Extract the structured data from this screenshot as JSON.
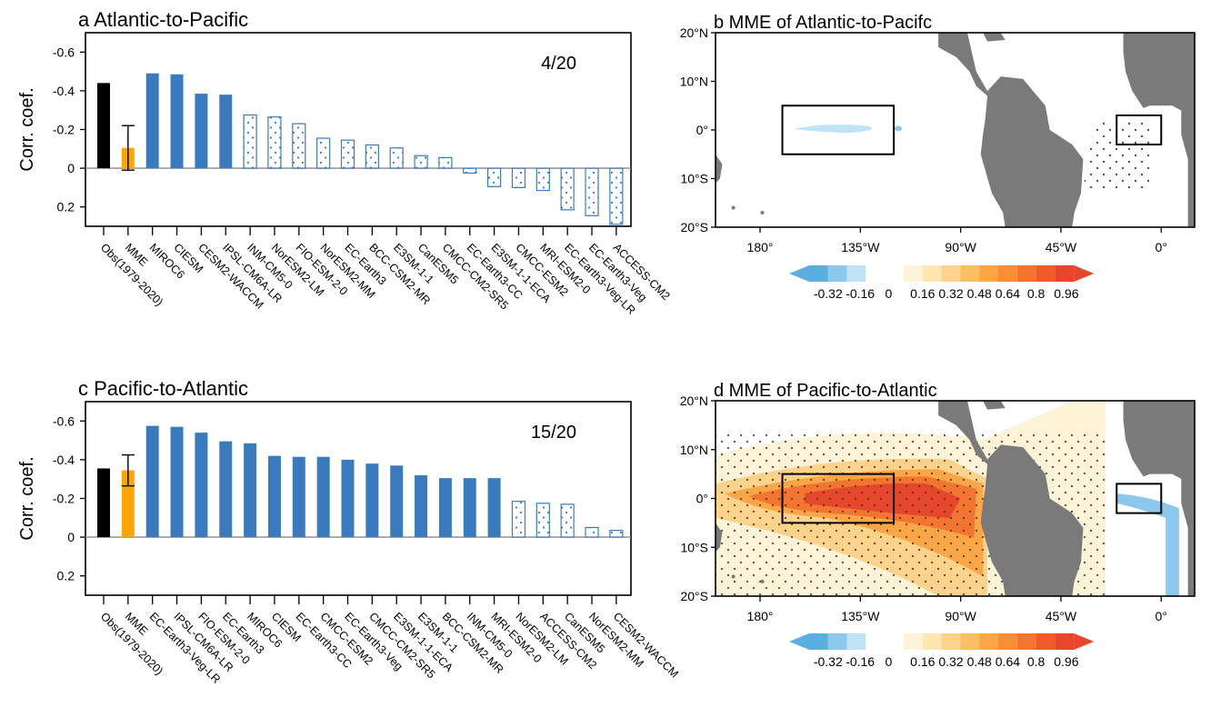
{
  "chart_data": [
    {
      "type": "bar",
      "title": "a Atlantic-to-Pacific",
      "ylabel": "Corr. coef.",
      "y_inverted": true,
      "ylim": [
        -0.7,
        0.3
      ],
      "yticks": [
        -0.6,
        -0.4,
        -0.2,
        0,
        0.2
      ],
      "ytick_labels": [
        "-0.6",
        "-0.4",
        "-0.2",
        "0",
        "0.2"
      ],
      "annotation": "4/20",
      "categories": [
        "Obs(1979-2020)",
        "MME",
        "MIROC6",
        "CIESM",
        "CESM2-WACCM",
        "IPSL-CM6A-LR",
        "INM-CM5-0",
        "NorESM2-LM",
        "FIO-ESM-2-0",
        "NorESM2-MM",
        "EC-Earth3",
        "BCC-CSM2-MR",
        "E3SM-1-1",
        "CanESM5",
        "CMCC-CM2-SR5",
        "EC-Earth3-CC",
        "E3SM-1-1-ECA",
        "CMCC-ESM2",
        "MRI-ESM2-0",
        "EC-Earth3-Veg-LR",
        "EC-Earth3-Veg",
        "ACCESS-CM2"
      ],
      "values": [
        -0.44,
        -0.105,
        -0.49,
        -0.485,
        -0.385,
        -0.38,
        -0.275,
        -0.265,
        -0.23,
        -0.155,
        -0.145,
        -0.12,
        -0.105,
        -0.065,
        -0.055,
        0.025,
        0.095,
        0.1,
        0.115,
        0.215,
        0.245,
        0.29
      ],
      "bar_style": [
        "obs",
        "mme",
        "sig",
        "sig",
        "sig",
        "sig",
        "nonsig",
        "nonsig",
        "nonsig",
        "nonsig",
        "nonsig",
        "nonsig",
        "nonsig",
        "nonsig",
        "nonsig",
        "nonsig",
        "nonsig",
        "nonsig",
        "nonsig",
        "nonsig",
        "nonsig",
        "nonsig"
      ],
      "mme_errorbar": [
        -0.22,
        0.01
      ],
      "colors": {
        "obs": "#000000",
        "mme": "#ffa500",
        "sig": "#3a7bbf",
        "nonsig_edge": "#3a7bbf",
        "dots": "#3a7bbf"
      }
    },
    {
      "type": "map",
      "title": "b MME of Atlantic-to-Pacifc",
      "lat_labels": [
        "20°N",
        "10°N",
        "0°",
        "10°S",
        "20°S"
      ],
      "lon_labels": [
        "180°",
        "135°W",
        "90°W",
        "45°W",
        "0°"
      ],
      "boxes": [
        {
          "lon_range": [
            -170,
            -120
          ],
          "lat_range": [
            -5,
            5
          ]
        },
        {
          "lon_range": [
            -20,
            0
          ],
          "lat_range": [
            -3,
            3
          ]
        }
      ]
    },
    {
      "type": "bar",
      "title": "c Pacific-to-Atlantic",
      "ylabel": "Corr. coef.",
      "y_inverted": true,
      "ylim": [
        -0.7,
        0.3
      ],
      "yticks": [
        -0.6,
        -0.4,
        -0.2,
        0,
        0.2
      ],
      "ytick_labels": [
        "-0.6",
        "-0.4",
        "-0.2",
        "0",
        "0.2"
      ],
      "annotation": "15/20",
      "categories": [
        "Obs(1979-2020)",
        "MME",
        "EC-Earth3-Veg-LR",
        "IPSL-CM6A-LR",
        "FIO-ESM-2-0",
        "EC-Earth3",
        "MIROC6",
        "CIESM",
        "EC-Earth3-CC",
        "CMCC-ESM2",
        "EC-Earth3-Veg",
        "CMCC-CM2-SR5",
        "E3SM-1-1-ECA",
        "E3SM-1-1",
        "BCC-CSM2-MR",
        "INM-CM5-0",
        "MRI-ESM2-0",
        "NorESM2-LM",
        "ACCESS-CM2",
        "CanESM5",
        "NorESM2-MM",
        "CESM2-WACCM"
      ],
      "values": [
        -0.355,
        -0.345,
        -0.575,
        -0.57,
        -0.54,
        -0.495,
        -0.485,
        -0.42,
        -0.415,
        -0.415,
        -0.4,
        -0.38,
        -0.37,
        -0.32,
        -0.305,
        -0.305,
        -0.305,
        -0.185,
        -0.175,
        -0.17,
        -0.05,
        -0.035
      ],
      "bar_style": [
        "obs",
        "mme",
        "sig",
        "sig",
        "sig",
        "sig",
        "sig",
        "sig",
        "sig",
        "sig",
        "sig",
        "sig",
        "sig",
        "sig",
        "sig",
        "sig",
        "sig",
        "nonsig",
        "nonsig",
        "nonsig",
        "nonsig",
        "nonsig"
      ],
      "mme_errorbar": [
        -0.425,
        -0.265
      ],
      "colors": {
        "obs": "#000000",
        "mme": "#ffa500",
        "sig": "#3a7bbf",
        "nonsig_edge": "#3a7bbf",
        "dots": "#3a7bbf"
      }
    },
    {
      "type": "map",
      "title": "d MME of Pacific-to-Atlantic",
      "lat_labels": [
        "20°N",
        "10°N",
        "0°",
        "10°S",
        "20°S"
      ],
      "lon_labels": [
        "180°",
        "135°W",
        "90°W",
        "45°W",
        "0°"
      ],
      "boxes": [
        {
          "lon_range": [
            -170,
            -120
          ],
          "lat_range": [
            -5,
            5
          ]
        },
        {
          "lon_range": [
            -20,
            0
          ],
          "lat_range": [
            -3,
            3
          ]
        }
      ]
    }
  ],
  "colorbar": {
    "tick_labels": [
      "-0.32",
      "-0.16",
      "0",
      "0.16",
      "0.32",
      "0.48",
      "0.64",
      "0.8",
      "0.96"
    ],
    "negative_colors": [
      "#5aaee0",
      "#8cc8ec",
      "#bfe2f6"
    ],
    "positive_colors": [
      "#fdf3d6",
      "#fde6b0",
      "#fdd28a",
      "#fdbd63",
      "#fca646",
      "#f98e38",
      "#f3752f",
      "#ec5d2a",
      "#e6472a"
    ]
  },
  "map_colors": {
    "land": "#7a7a7a",
    "box": "#000000",
    "stipple": "#333333"
  }
}
